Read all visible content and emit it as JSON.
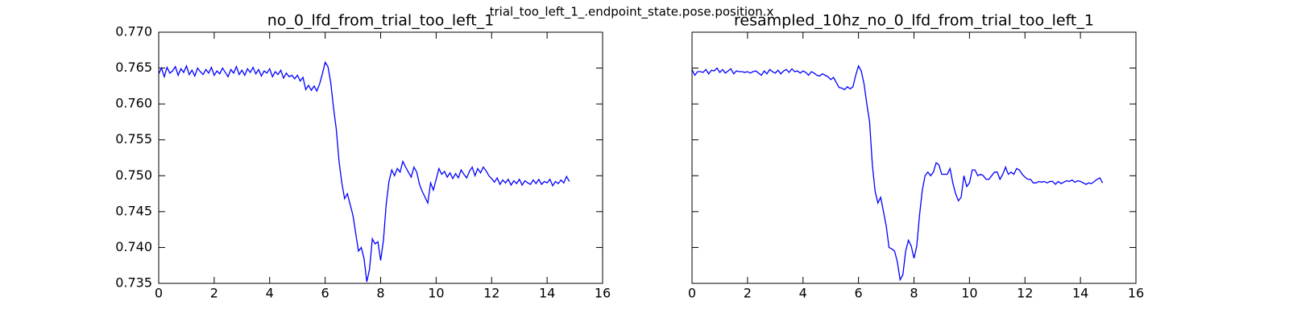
{
  "figure_title": "trial_too_left_1_.endpoint_state.pose.position.x",
  "chart_data": [
    {
      "type": "line",
      "title": "no_0_lfd_from_trial_too_left_1",
      "color": "#0000ff",
      "x": [
        0.0,
        0.1,
        0.2,
        0.3,
        0.4,
        0.5,
        0.6,
        0.7,
        0.8,
        0.9,
        1.0,
        1.1,
        1.2,
        1.3,
        1.4,
        1.5,
        1.6,
        1.7,
        1.8,
        1.9,
        2.0,
        2.1,
        2.2,
        2.3,
        2.4,
        2.5,
        2.6,
        2.7,
        2.8,
        2.9,
        3.0,
        3.1,
        3.2,
        3.3,
        3.4,
        3.5,
        3.6,
        3.7,
        3.8,
        3.9,
        4.0,
        4.1,
        4.2,
        4.3,
        4.4,
        4.5,
        4.6,
        4.7,
        4.8,
        4.9,
        5.0,
        5.1,
        5.2,
        5.3,
        5.4,
        5.5,
        5.6,
        5.7,
        5.8,
        5.9,
        6.0,
        6.1,
        6.2,
        6.3,
        6.4,
        6.5,
        6.6,
        6.7,
        6.8,
        6.9,
        7.0,
        7.1,
        7.2,
        7.3,
        7.4,
        7.5,
        7.6,
        7.7,
        7.8,
        7.9,
        8.0,
        8.1,
        8.2,
        8.3,
        8.4,
        8.5,
        8.6,
        8.7,
        8.8,
        8.9,
        9.0,
        9.1,
        9.2,
        9.3,
        9.4,
        9.5,
        9.6,
        9.7,
        9.8,
        9.9,
        10.0,
        10.1,
        10.2,
        10.3,
        10.4,
        10.5,
        10.6,
        10.7,
        10.8,
        10.9,
        11.0,
        11.1,
        11.2,
        11.3,
        11.4,
        11.5,
        11.6,
        11.7,
        11.8,
        11.9,
        12.0,
        12.1,
        12.2,
        12.3,
        12.4,
        12.5,
        12.6,
        12.7,
        12.8,
        12.9,
        13.0,
        13.1,
        13.2,
        13.3,
        13.4,
        13.5,
        13.6,
        13.7,
        13.8,
        13.9,
        14.0,
        14.1,
        14.2,
        14.3,
        14.4,
        14.5,
        14.6,
        14.7,
        14.8
      ],
      "values": [
        0.7642,
        0.765,
        0.7638,
        0.7651,
        0.7643,
        0.7646,
        0.7652,
        0.764,
        0.7649,
        0.7644,
        0.7653,
        0.7641,
        0.7647,
        0.7639,
        0.765,
        0.7645,
        0.7641,
        0.7648,
        0.7643,
        0.7651,
        0.764,
        0.7646,
        0.7642,
        0.765,
        0.7644,
        0.7638,
        0.7648,
        0.7643,
        0.7652,
        0.7641,
        0.7647,
        0.764,
        0.7649,
        0.7644,
        0.7651,
        0.7642,
        0.7648,
        0.7639,
        0.7646,
        0.7643,
        0.7649,
        0.7638,
        0.7645,
        0.7641,
        0.7647,
        0.7636,
        0.7643,
        0.7638,
        0.764,
        0.7635,
        0.764,
        0.7632,
        0.7637,
        0.762,
        0.7626,
        0.7619,
        0.7625,
        0.7618,
        0.7628,
        0.7642,
        0.7658,
        0.7652,
        0.763,
        0.7595,
        0.7565,
        0.752,
        0.749,
        0.7468,
        0.7475,
        0.746,
        0.7445,
        0.742,
        0.7395,
        0.74,
        0.7385,
        0.7352,
        0.737,
        0.7412,
        0.7405,
        0.7408,
        0.7382,
        0.741,
        0.746,
        0.7492,
        0.7508,
        0.75,
        0.751,
        0.7505,
        0.752,
        0.7512,
        0.7505,
        0.7498,
        0.7512,
        0.7505,
        0.7488,
        0.7478,
        0.747,
        0.7462,
        0.749,
        0.748,
        0.7495,
        0.751,
        0.7502,
        0.7506,
        0.7498,
        0.7504,
        0.7496,
        0.7503,
        0.7497,
        0.7508,
        0.7502,
        0.7497,
        0.7506,
        0.7512,
        0.75,
        0.751,
        0.7504,
        0.7512,
        0.7507,
        0.75,
        0.7496,
        0.7491,
        0.7497,
        0.7488,
        0.7494,
        0.749,
        0.7495,
        0.7487,
        0.7493,
        0.7489,
        0.7495,
        0.7487,
        0.7493,
        0.749,
        0.7488,
        0.7494,
        0.7489,
        0.7495,
        0.7488,
        0.7492,
        0.749,
        0.7495,
        0.7486,
        0.7492,
        0.7489,
        0.7494,
        0.749,
        0.7499,
        0.7492
      ],
      "xlim": [
        0,
        16
      ],
      "xticks": [
        0,
        2,
        4,
        6,
        8,
        10,
        12,
        14,
        16
      ],
      "ylim": [
        0.735,
        0.77
      ],
      "yticks": [
        0.735,
        {
          "value": 0.74,
          "label": "0.740"
        },
        0.745,
        {
          "value": 0.75,
          "label": "0.750"
        },
        0.755,
        {
          "value": 0.76,
          "label": "0.760"
        },
        0.765,
        {
          "value": 0.77,
          "label": "0.770"
        }
      ],
      "show_ytick_labels": true
    },
    {
      "type": "line",
      "title": "resampled_10hz_no_0_lfd_from_trial_too_left_1",
      "color": "#0000ff",
      "x": [
        0.0,
        0.1,
        0.2,
        0.3,
        0.4,
        0.5,
        0.6,
        0.7,
        0.8,
        0.9,
        1.0,
        1.1,
        1.2,
        1.3,
        1.4,
        1.5,
        1.6,
        1.7,
        1.8,
        1.9,
        2.0,
        2.1,
        2.2,
        2.3,
        2.4,
        2.5,
        2.6,
        2.7,
        2.8,
        2.9,
        3.0,
        3.1,
        3.2,
        3.3,
        3.4,
        3.5,
        3.6,
        3.7,
        3.8,
        3.9,
        4.0,
        4.1,
        4.2,
        4.3,
        4.4,
        4.5,
        4.6,
        4.7,
        4.8,
        4.9,
        5.0,
        5.1,
        5.2,
        5.3,
        5.4,
        5.5,
        5.6,
        5.7,
        5.8,
        5.9,
        6.0,
        6.1,
        6.2,
        6.3,
        6.4,
        6.5,
        6.6,
        6.7,
        6.8,
        6.9,
        7.0,
        7.1,
        7.2,
        7.3,
        7.4,
        7.5,
        7.6,
        7.7,
        7.8,
        7.9,
        8.0,
        8.1,
        8.2,
        8.3,
        8.4,
        8.5,
        8.6,
        8.7,
        8.8,
        8.9,
        9.0,
        9.1,
        9.2,
        9.3,
        9.4,
        9.5,
        9.6,
        9.7,
        9.8,
        9.9,
        10.0,
        10.1,
        10.2,
        10.3,
        10.4,
        10.5,
        10.6,
        10.7,
        10.8,
        10.9,
        11.0,
        11.1,
        11.2,
        11.3,
        11.4,
        11.5,
        11.6,
        11.7,
        11.8,
        11.9,
        12.0,
        12.1,
        12.2,
        12.3,
        12.4,
        12.5,
        12.6,
        12.7,
        12.8,
        12.9,
        13.0,
        13.1,
        13.2,
        13.3,
        13.4,
        13.5,
        13.6,
        13.7,
        13.8,
        13.9,
        14.0,
        14.1,
        14.2,
        14.3,
        14.4,
        14.5,
        14.6,
        14.7,
        14.8
      ],
      "values": [
        0.7648,
        0.764,
        0.7645,
        0.7645,
        0.7644,
        0.7648,
        0.7642,
        0.7647,
        0.7646,
        0.765,
        0.7644,
        0.7648,
        0.7643,
        0.7646,
        0.7649,
        0.7642,
        0.7646,
        0.7645,
        0.7645,
        0.7644,
        0.7645,
        0.7643,
        0.7645,
        0.7646,
        0.7643,
        0.764,
        0.7646,
        0.7642,
        0.7648,
        0.7645,
        0.7643,
        0.7647,
        0.7642,
        0.7646,
        0.7648,
        0.7644,
        0.7649,
        0.7645,
        0.7646,
        0.7643,
        0.7646,
        0.7644,
        0.764,
        0.7645,
        0.7643,
        0.764,
        0.7639,
        0.7642,
        0.764,
        0.7638,
        0.7634,
        0.7637,
        0.763,
        0.7623,
        0.7622,
        0.762,
        0.7624,
        0.7621,
        0.7624,
        0.764,
        0.7653,
        0.7646,
        0.7628,
        0.76,
        0.7575,
        0.7515,
        0.7478,
        0.7462,
        0.747,
        0.745,
        0.743,
        0.74,
        0.7398,
        0.7395,
        0.738,
        0.7355,
        0.7362,
        0.7395,
        0.741,
        0.7402,
        0.7385,
        0.7402,
        0.7445,
        0.748,
        0.75,
        0.7505,
        0.75,
        0.7505,
        0.7518,
        0.7515,
        0.7502,
        0.7502,
        0.7502,
        0.751,
        0.749,
        0.7475,
        0.7465,
        0.747,
        0.75,
        0.7485,
        0.749,
        0.7508,
        0.7508,
        0.75,
        0.7502,
        0.75,
        0.7495,
        0.7495,
        0.75,
        0.7505,
        0.7505,
        0.7495,
        0.7502,
        0.7512,
        0.7502,
        0.7505,
        0.7502,
        0.751,
        0.7508,
        0.7502,
        0.7498,
        0.7495,
        0.7495,
        0.749,
        0.749,
        0.7492,
        0.7491,
        0.7492,
        0.749,
        0.7492,
        0.7492,
        0.7488,
        0.7492,
        0.7489,
        0.7491,
        0.7493,
        0.7492,
        0.7494,
        0.7491,
        0.7493,
        0.7492,
        0.749,
        0.7488,
        0.749,
        0.7489,
        0.7492,
        0.7495,
        0.7497,
        0.749
      ],
      "xlim": [
        0,
        16
      ],
      "xticks": [
        0,
        2,
        4,
        6,
        8,
        10,
        12,
        14,
        16
      ],
      "ylim": [
        0.735,
        0.77
      ],
      "yticks": [
        0.735,
        0.74,
        0.745,
        0.75,
        0.755,
        0.76,
        0.765,
        0.77
      ],
      "show_ytick_labels": false
    }
  ]
}
